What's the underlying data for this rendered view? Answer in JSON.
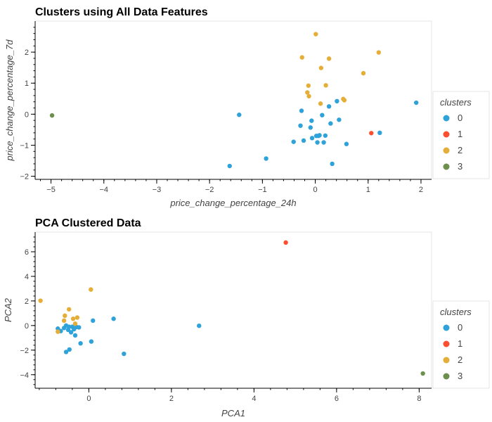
{
  "chart_data": [
    {
      "type": "scatter",
      "title": "Clusters using All Data Features",
      "xlabel": "price_change_percentage_24h",
      "ylabel": "price_change_percentage_7d",
      "xlim": [
        -5.3,
        2.2
      ],
      "ylim": [
        -2.1,
        3.0
      ],
      "xticks": [
        -5,
        -4,
        -3,
        -2,
        -1,
        0,
        1,
        2
      ],
      "yticks": [
        -2,
        -1,
        0,
        1,
        2
      ],
      "grid": false,
      "legend": {
        "title": "clusters",
        "placement": "right"
      },
      "series": [
        {
          "name": "0",
          "color": "#30a2da",
          "points": [
            [
              -1.62,
              -1.67
            ],
            [
              -1.44,
              -0.02
            ],
            [
              -0.93,
              -1.43
            ],
            [
              -0.41,
              -0.89
            ],
            [
              -0.28,
              -0.37
            ],
            [
              -0.26,
              0.11
            ],
            [
              -0.22,
              -0.85
            ],
            [
              -0.09,
              -0.43
            ],
            [
              -0.07,
              -0.21
            ],
            [
              -0.06,
              -0.77
            ],
            [
              0.02,
              -0.7
            ],
            [
              0.04,
              -0.91
            ],
            [
              0.06,
              -0.7
            ],
            [
              0.08,
              -0.68
            ],
            [
              0.13,
              -0.03
            ],
            [
              0.16,
              -0.91
            ],
            [
              0.19,
              -0.69
            ],
            [
              0.26,
              0.25
            ],
            [
              0.29,
              -0.3
            ],
            [
              0.32,
              -1.6
            ],
            [
              0.41,
              0.42
            ],
            [
              0.45,
              -0.18
            ],
            [
              0.59,
              -0.96
            ],
            [
              1.22,
              -0.6
            ],
            [
              1.91,
              0.37
            ]
          ]
        },
        {
          "name": "1",
          "color": "#fc4f30",
          "points": [
            [
              1.06,
              -0.61
            ]
          ]
        },
        {
          "name": "2",
          "color": "#e5ae38",
          "points": [
            [
              0.01,
              2.58
            ],
            [
              -0.25,
              1.83
            ],
            [
              0.11,
              1.49
            ],
            [
              0.26,
              1.79
            ],
            [
              1.2,
              1.99
            ],
            [
              0.91,
              1.32
            ],
            [
              -0.13,
              0.92
            ],
            [
              0.2,
              0.93
            ],
            [
              -0.15,
              0.7
            ],
            [
              -0.12,
              0.58
            ],
            [
              0.1,
              0.34
            ],
            [
              0.53,
              0.49
            ],
            [
              0.55,
              0.45
            ]
          ]
        },
        {
          "name": "3",
          "color": "#6d904f",
          "points": [
            [
              -4.98,
              -0.04
            ]
          ]
        }
      ]
    },
    {
      "type": "scatter",
      "title": "PCA Clustered Data",
      "xlabel": "PCA1",
      "ylabel": "PCA2",
      "xlim": [
        -1.3,
        8.3
      ],
      "ylim": [
        -5.1,
        7.6
      ],
      "xticks": [
        0,
        2,
        4,
        6,
        8
      ],
      "yticks": [
        -4,
        -2,
        0,
        2,
        4,
        6
      ],
      "grid": false,
      "legend": {
        "title": "clusters",
        "placement": "right"
      },
      "series": [
        {
          "name": "0",
          "color": "#30a2da",
          "points": [
            [
              -0.75,
              -0.25
            ],
            [
              -0.68,
              -0.45
            ],
            [
              -0.6,
              -0.2
            ],
            [
              -0.55,
              0.0
            ],
            [
              -0.5,
              -0.35
            ],
            [
              -0.48,
              -0.1
            ],
            [
              -0.43,
              -0.55
            ],
            [
              -0.4,
              -0.1
            ],
            [
              -0.36,
              -0.3
            ],
            [
              -0.33,
              -0.8
            ],
            [
              -0.3,
              -0.12
            ],
            [
              -0.24,
              -0.15
            ],
            [
              -0.2,
              -1.45
            ],
            [
              -0.55,
              -2.15
            ],
            [
              -0.47,
              -1.95
            ],
            [
              0.06,
              -1.3
            ],
            [
              0.1,
              0.4
            ],
            [
              0.6,
              0.55
            ],
            [
              0.85,
              -2.3
            ],
            [
              2.67,
              -0.02
            ]
          ]
        },
        {
          "name": "1",
          "color": "#fc4f30",
          "points": [
            [
              4.77,
              6.75
            ]
          ]
        },
        {
          "name": "2",
          "color": "#e5ae38",
          "points": [
            [
              -1.17,
              2.02
            ],
            [
              0.05,
              2.93
            ],
            [
              -0.48,
              1.32
            ],
            [
              -0.58,
              0.8
            ],
            [
              -0.6,
              0.4
            ],
            [
              -0.38,
              0.55
            ],
            [
              -0.28,
              0.65
            ],
            [
              -0.33,
              0.15
            ],
            [
              -0.75,
              -0.5
            ]
          ]
        },
        {
          "name": "3",
          "color": "#6d904f",
          "points": [
            [
              8.09,
              -3.9
            ]
          ]
        }
      ]
    }
  ]
}
